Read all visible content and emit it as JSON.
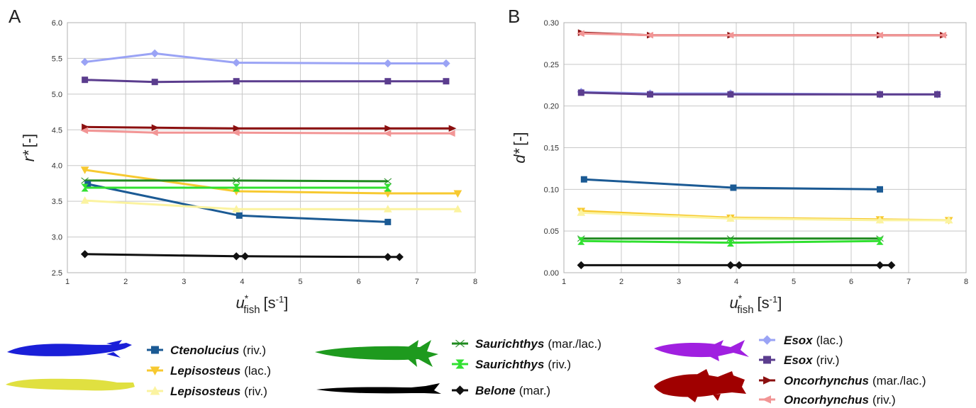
{
  "chart_data": [
    {
      "panel": "A",
      "type": "line",
      "ylabel": "r* [-]",
      "ylabel_parts": {
        "main": "r*",
        "unit": "[-]"
      },
      "xlabel": "u*fish [s-1]",
      "xlabel_parts": {
        "main": "u",
        "sup": "*",
        "sub": "fish",
        "unit_pre": "[s",
        "unit_sup": "-1",
        "unit_post": "]"
      },
      "xlim": [
        1,
        8
      ],
      "ylim": [
        2.5,
        6.0
      ],
      "xticks": [
        "1",
        "2",
        "3",
        "4",
        "5",
        "6",
        "7",
        "8"
      ],
      "yticks": [
        "2.5",
        "3.0",
        "3.5",
        "4.0",
        "4.5",
        "5.0",
        "5.5",
        "6.0"
      ],
      "grid": true,
      "series": [
        {
          "name": "Esox (lac.)",
          "x": [
            1.3,
            2.5,
            3.9,
            6.5,
            7.5
          ],
          "y": [
            5.45,
            5.57,
            5.44,
            5.43,
            5.43
          ]
        },
        {
          "name": "Esox (riv.)",
          "x": [
            1.3,
            2.5,
            3.9,
            6.5,
            7.5
          ],
          "y": [
            5.2,
            5.17,
            5.18,
            5.18,
            5.18
          ]
        },
        {
          "name": "Oncorhynchus (mar./lac.)",
          "x": [
            1.3,
            2.5,
            3.9,
            6.5,
            7.6
          ],
          "y": [
            4.54,
            4.53,
            4.52,
            4.52,
            4.52
          ]
        },
        {
          "name": "Oncorhynchus (riv.)",
          "x": [
            1.3,
            2.5,
            3.9,
            6.5,
            7.6
          ],
          "y": [
            4.49,
            4.46,
            4.46,
            4.45,
            4.45
          ]
        },
        {
          "name": "Lepisosteus (lac.)",
          "x": [
            1.3,
            3.9,
            6.5,
            7.7
          ],
          "y": [
            3.94,
            3.64,
            3.61,
            3.61
          ]
        },
        {
          "name": "Saurichthys (mar./lac.)",
          "x": [
            1.3,
            3.9,
            6.5
          ],
          "y": [
            3.79,
            3.79,
            3.78
          ]
        },
        {
          "name": "Ctenolucius (riv.)",
          "x": [
            1.35,
            3.95,
            6.5
          ],
          "y": [
            3.74,
            3.3,
            3.21
          ]
        },
        {
          "name": "Saurichthys (riv.)",
          "x": [
            1.3,
            3.9,
            6.5
          ],
          "y": [
            3.69,
            3.69,
            3.69
          ]
        },
        {
          "name": "Lepisosteus (riv.)",
          "x": [
            1.3,
            3.9,
            6.5,
            7.7
          ],
          "y": [
            3.51,
            3.39,
            3.39,
            3.39
          ]
        },
        {
          "name": "Belone (mar.)",
          "x": [
            1.3,
            3.9,
            4.05,
            6.5,
            6.7
          ],
          "y": [
            2.76,
            2.73,
            2.73,
            2.72,
            2.72
          ]
        }
      ]
    },
    {
      "panel": "B",
      "type": "line",
      "ylabel": "d* [-]",
      "ylabel_parts": {
        "main": "d*",
        "unit": "[-]"
      },
      "xlabel": "u*fish [s-1]",
      "xlabel_parts": {
        "main": "u",
        "sup": "*",
        "sub": "fish",
        "unit_pre": "[s",
        "unit_sup": "-1",
        "unit_post": "]"
      },
      "xlim": [
        1,
        8
      ],
      "ylim": [
        0,
        0.3
      ],
      "xticks": [
        "1",
        "2",
        "3",
        "4",
        "5",
        "6",
        "7",
        "8"
      ],
      "yticks": [
        "0.00",
        "0.05",
        "0.10",
        "0.15",
        "0.20",
        "0.25",
        "0.30"
      ],
      "grid": true,
      "series": [
        {
          "name": "Oncorhynchus (mar./lac.)",
          "x": [
            1.3,
            2.5,
            3.9,
            6.5,
            7.6
          ],
          "y": [
            0.288,
            0.285,
            0.285,
            0.285,
            0.285
          ]
        },
        {
          "name": "Oncorhynchus (riv.)",
          "x": [
            1.3,
            2.5,
            3.9,
            6.5,
            7.6
          ],
          "y": [
            0.287,
            0.285,
            0.285,
            0.285,
            0.285
          ]
        },
        {
          "name": "Esox (lac.)",
          "x": [
            1.3,
            2.5,
            3.9,
            6.5,
            7.5
          ],
          "y": [
            0.217,
            0.215,
            0.215,
            0.214,
            0.214
          ]
        },
        {
          "name": "Esox (riv.)",
          "x": [
            1.3,
            2.5,
            3.9,
            6.5,
            7.5
          ],
          "y": [
            0.216,
            0.214,
            0.214,
            0.214,
            0.214
          ]
        },
        {
          "name": "Ctenolucius (riv.)",
          "x": [
            1.35,
            3.95,
            6.5
          ],
          "y": [
            0.112,
            0.102,
            0.1
          ]
        },
        {
          "name": "Lepisosteus (lac.)",
          "x": [
            1.3,
            3.9,
            6.5,
            7.7
          ],
          "y": [
            0.074,
            0.066,
            0.064,
            0.063
          ]
        },
        {
          "name": "Lepisosteus (riv.)",
          "x": [
            1.3,
            3.9,
            6.5,
            7.7
          ],
          "y": [
            0.072,
            0.065,
            0.063,
            0.063
          ]
        },
        {
          "name": "Saurichthys (mar./lac.)",
          "x": [
            1.3,
            3.9,
            6.5
          ],
          "y": [
            0.041,
            0.041,
            0.041
          ]
        },
        {
          "name": "Saurichthys (riv.)",
          "x": [
            1.3,
            3.9,
            6.5
          ],
          "y": [
            0.038,
            0.036,
            0.038
          ]
        },
        {
          "name": "Belone (mar.)",
          "x": [
            1.3,
            3.9,
            4.05,
            6.5,
            6.7
          ],
          "y": [
            0.009,
            0.009,
            0.009,
            0.009,
            0.009
          ]
        }
      ]
    }
  ],
  "series_styles": {
    "Esox (lac.)": {
      "color": "#9aa3f5",
      "marker": "diamond"
    },
    "Esox (riv.)": {
      "color": "#5b3d8e",
      "marker": "square"
    },
    "Oncorhynchus (mar./lac.)": {
      "color": "#8b0f0f",
      "marker": "tri-right"
    },
    "Oncorhynchus (riv.)": {
      "color": "#f29595",
      "marker": "tri-left"
    },
    "Lepisosteus (lac.)": {
      "color": "#f7c930",
      "marker": "tri-down"
    },
    "Lepisosteus (riv.)": {
      "color": "#fbf3a0",
      "marker": "tri-up"
    },
    "Saurichthys (mar./lac.)": {
      "color": "#1f8a1f",
      "marker": "double-arrow"
    },
    "Saurichthys (riv.)": {
      "color": "#30e030",
      "marker": "hourglass"
    },
    "Ctenolucius (riv.)": {
      "color": "#1b5a94",
      "marker": "square"
    },
    "Belone (mar.)": {
      "color": "#111111",
      "marker": "diamond"
    }
  },
  "panel_labels": [
    "A",
    "B"
  ],
  "legend": {
    "groups": [
      {
        "fish": [
          {
            "silhouette": "ctenolucius-silhouette",
            "color": "#1a1fd8"
          },
          {
            "silhouette": "lepisosteus-silhouette",
            "color": "#e0e040"
          }
        ],
        "entries": [
          {
            "genus": "Ctenolucius",
            "tag": "(riv.)",
            "series": "Ctenolucius (riv.)"
          },
          {
            "genus": "Lepisosteus",
            "tag": "(lac.)",
            "series": "Lepisosteus (lac.)"
          },
          {
            "genus": "Lepisosteus",
            "tag": "(riv.)",
            "series": "Lepisosteus (riv.)"
          }
        ]
      },
      {
        "fish": [
          {
            "silhouette": "saurichthys-silhouette",
            "color": "#1e9a1e"
          },
          {
            "silhouette": "belone-silhouette",
            "color": "#000000"
          }
        ],
        "entries": [
          {
            "genus": "Saurichthys",
            "tag": "(mar./lac.)",
            "series": "Saurichthys (mar./lac.)"
          },
          {
            "genus": "Saurichthys",
            "tag": "(riv.)",
            "series": "Saurichthys (riv.)"
          },
          {
            "genus": "Belone",
            "tag": "(mar.)",
            "series": "Belone (mar.)"
          }
        ]
      },
      {
        "fish": [
          {
            "silhouette": "esox-silhouette",
            "color": "#a020e0"
          },
          {
            "silhouette": "oncorhynchus-silhouette",
            "color": "#a00000"
          }
        ],
        "entries": [
          {
            "genus": "Esox",
            "tag": "(lac.)",
            "series": "Esox (lac.)"
          },
          {
            "genus": "Esox",
            "tag": "(riv.)",
            "series": "Esox (riv.)"
          },
          {
            "genus": "Oncorhynchus",
            "tag": "(mar./lac.)",
            "series": "Oncorhynchus (mar./lac.)"
          },
          {
            "genus": "Oncorhynchus",
            "tag": "(riv.)",
            "series": "Oncorhynchus (riv.)"
          }
        ]
      }
    ]
  }
}
